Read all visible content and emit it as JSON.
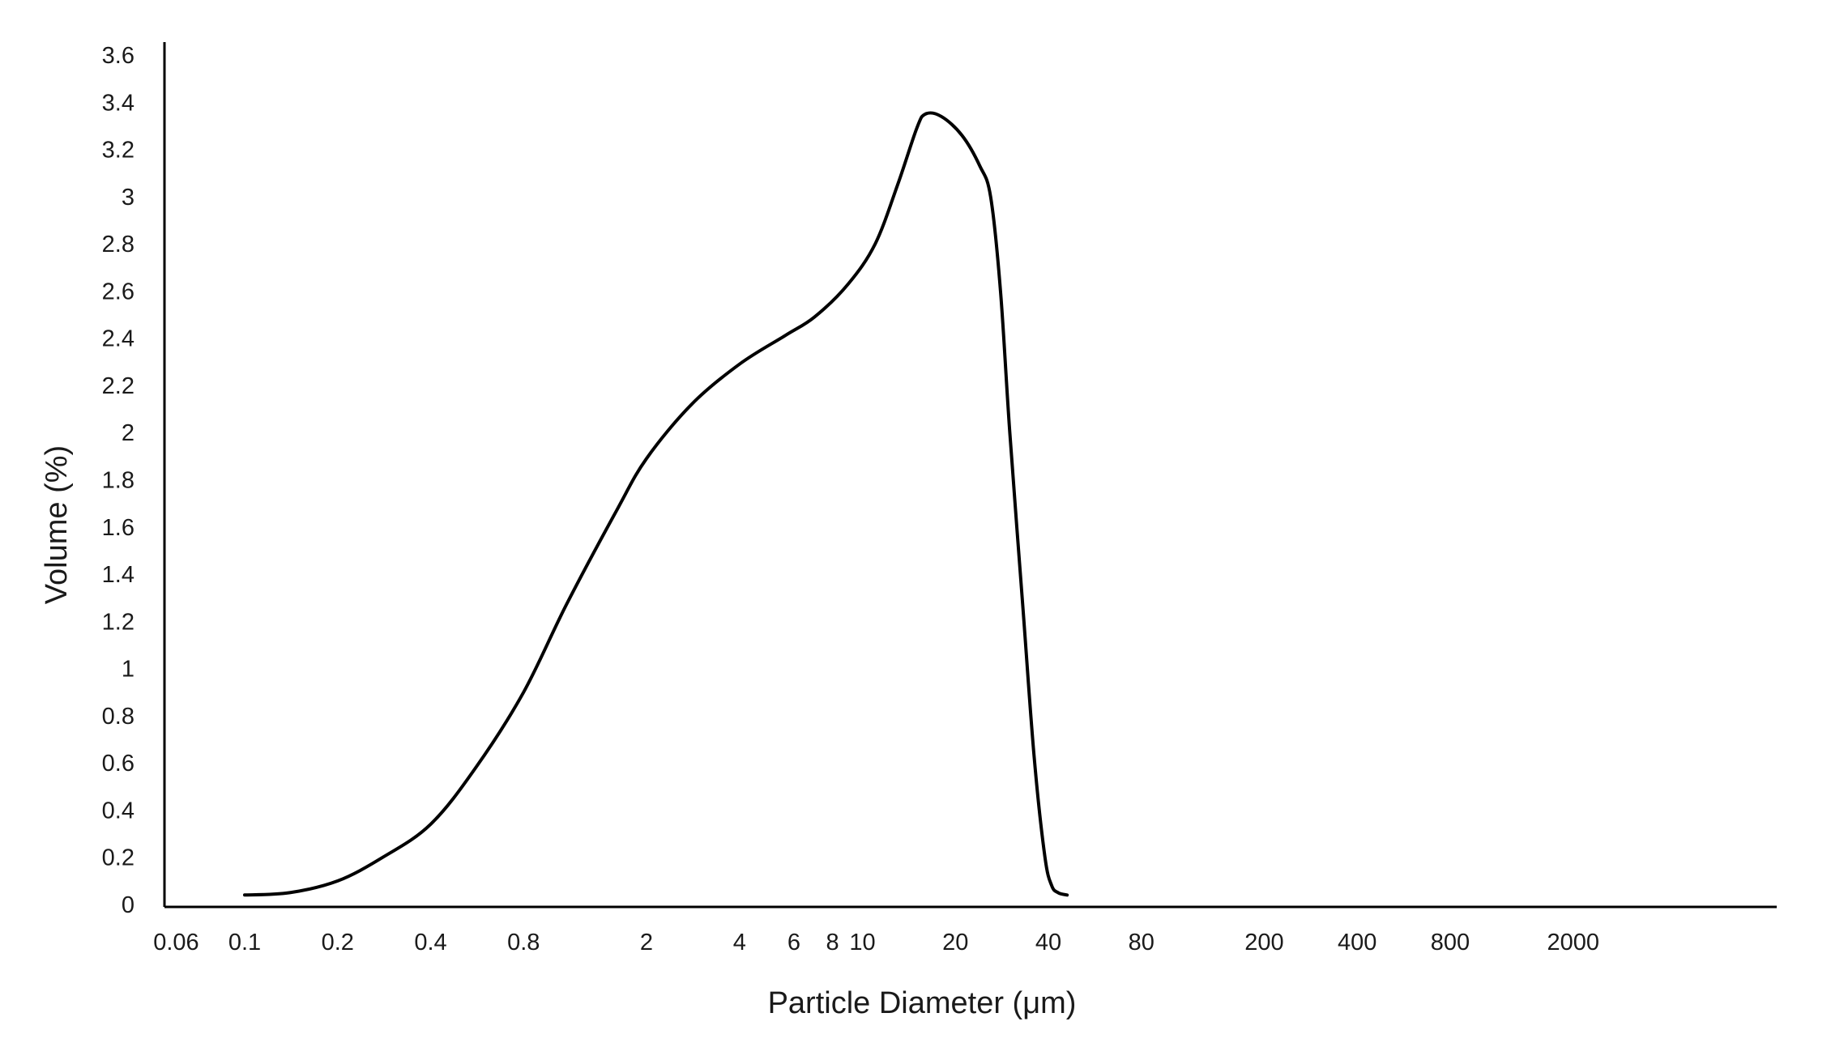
{
  "chart_data": {
    "type": "line",
    "title": "",
    "xlabel": "Particle Diameter (μm)",
    "ylabel": "Volume (%)",
    "x_scale": "log",
    "xlim": [
      0.06,
      2000
    ],
    "ylim": [
      0,
      3.6
    ],
    "grid": false,
    "legend": "none",
    "line_color": "#000000",
    "x_ticks": [
      {
        "value": 0.06,
        "label": "0.06"
      },
      {
        "value": 0.1,
        "label": "0.1"
      },
      {
        "value": 0.2,
        "label": "0.2"
      },
      {
        "value": 0.4,
        "label": "0.4"
      },
      {
        "value": 0.8,
        "label": "0.8"
      },
      {
        "value": 2,
        "label": "2"
      },
      {
        "value": 4,
        "label": "4"
      },
      {
        "value": 6,
        "label": "6"
      },
      {
        "value": 8,
        "label": "8"
      },
      {
        "value": 10,
        "label": "10"
      },
      {
        "value": 20,
        "label": "20"
      },
      {
        "value": 40,
        "label": "40"
      },
      {
        "value": 80,
        "label": "80"
      },
      {
        "value": 200,
        "label": "200"
      },
      {
        "value": 400,
        "label": "400"
      },
      {
        "value": 800,
        "label": "800"
      },
      {
        "value": 2000,
        "label": "2000"
      }
    ],
    "y_ticks": [
      {
        "value": 0,
        "label": "0"
      },
      {
        "value": 0.2,
        "label": "0.2"
      },
      {
        "value": 0.4,
        "label": "0.4"
      },
      {
        "value": 0.6,
        "label": "0.6"
      },
      {
        "value": 0.8,
        "label": "0.8"
      },
      {
        "value": 1,
        "label": "1"
      },
      {
        "value": 1.2,
        "label": "1.2"
      },
      {
        "value": 1.4,
        "label": "1.4"
      },
      {
        "value": 1.6,
        "label": "1.6"
      },
      {
        "value": 1.8,
        "label": "1.8"
      },
      {
        "value": 2,
        "label": "2"
      },
      {
        "value": 2.2,
        "label": "2.2"
      },
      {
        "value": 2.4,
        "label": "2.4"
      },
      {
        "value": 2.6,
        "label": "2.6"
      },
      {
        "value": 2.8,
        "label": "2.8"
      },
      {
        "value": 3,
        "label": "3"
      },
      {
        "value": 3.2,
        "label": "3.2"
      },
      {
        "value": 3.4,
        "label": "3.4"
      },
      {
        "value": 3.6,
        "label": "3.6"
      }
    ],
    "series": [
      {
        "x": [
          0.1,
          0.14,
          0.2,
          0.28,
          0.4,
          0.56,
          0.8,
          1.1,
          1.6,
          2.0,
          2.8,
          4.0,
          5.6,
          7.0,
          9.0,
          11.0,
          13.0,
          15.0,
          16.0,
          18.0,
          21.0,
          24.0,
          26.0,
          28.0,
          30.0,
          33.0,
          36.0,
          39.0,
          41.0,
          43.0,
          46.0
        ],
        "y": [
          0.04,
          0.05,
          0.1,
          0.2,
          0.34,
          0.58,
          0.9,
          1.27,
          1.67,
          1.89,
          2.12,
          2.29,
          2.41,
          2.49,
          2.63,
          2.8,
          3.05,
          3.29,
          3.35,
          3.34,
          3.26,
          3.13,
          3.0,
          2.6,
          2.0,
          1.28,
          0.62,
          0.2,
          0.08,
          0.05,
          0.04
        ]
      }
    ]
  }
}
